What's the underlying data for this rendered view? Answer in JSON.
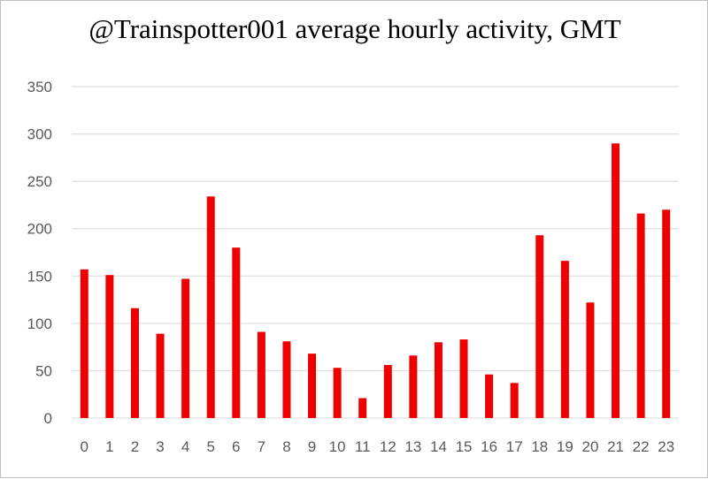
{
  "chart_data": {
    "type": "bar",
    "title": "@Trainspotter001 average hourly activity, GMT",
    "xlabel": "",
    "ylabel": "",
    "categories": [
      "0",
      "1",
      "2",
      "3",
      "4",
      "5",
      "6",
      "7",
      "8",
      "9",
      "10",
      "11",
      "12",
      "13",
      "14",
      "15",
      "16",
      "17",
      "18",
      "19",
      "20",
      "21",
      "22",
      "23"
    ],
    "values": [
      157,
      151,
      116,
      89,
      147,
      234,
      180,
      91,
      81,
      68,
      53,
      21,
      56,
      66,
      80,
      83,
      46,
      37,
      193,
      166,
      122,
      290,
      216,
      220
    ],
    "ylim": [
      0,
      350
    ],
    "yticks": [
      "0",
      "50",
      "100",
      "150",
      "200",
      "250",
      "300",
      "350"
    ],
    "grid": true,
    "legend": "none",
    "bar_color": "#ee0000",
    "grid_color": "#d9d9d9"
  }
}
